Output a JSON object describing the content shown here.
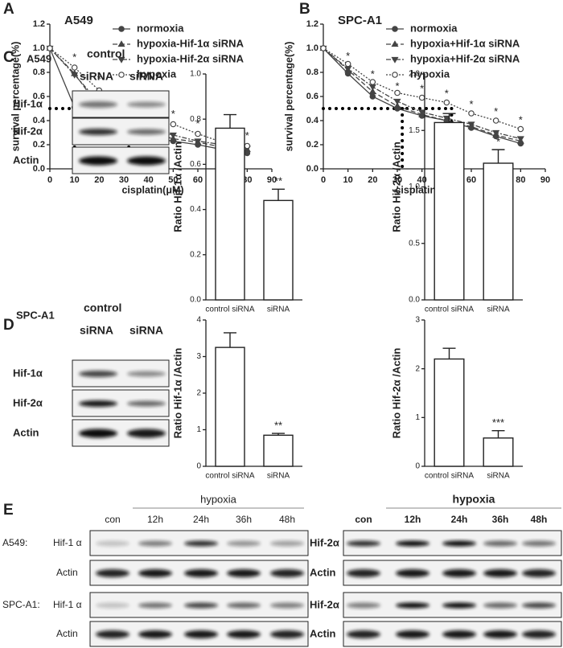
{
  "panel_labels": [
    "A",
    "B",
    "C",
    "D",
    "E"
  ],
  "chart_data": [
    {
      "type": "line",
      "title": "A549",
      "xlabel": "cisplatin(μM)",
      "ylabel": "survival percentage(%)",
      "x": [
        0,
        10,
        20,
        30,
        40,
        50,
        60,
        70,
        80
      ],
      "xlim": [
        0,
        90
      ],
      "xticks": [
        0,
        10,
        20,
        30,
        40,
        50,
        60,
        70,
        80,
        90
      ],
      "ylim": [
        0,
        1.2
      ],
      "yticks": [
        {
          "value": 0,
          "label": "0.0"
        },
        0.2,
        0.4,
        0.6,
        0.8,
        {
          "value": 1,
          "label": "1.0"
        },
        1.2
      ],
      "legend": "upper right",
      "series": [
        {
          "name": "normoxia",
          "color": "#444444",
          "line_style": "solid",
          "marker": "filled-circle",
          "values": [
            1.0,
            0.51,
            0.41,
            0.31,
            0.26,
            0.23,
            0.2,
            0.16,
            0.13
          ]
        },
        {
          "name": "hypoxia-Hif-1α siRNA",
          "color": "#444444",
          "line_style": "dashed",
          "marker": "triangle-up",
          "values": [
            1.0,
            0.79,
            0.51,
            0.37,
            0.3,
            0.25,
            0.22,
            0.18,
            0.16
          ]
        },
        {
          "name": "hypoxia-Hif-2α siRNA",
          "color": "#444444",
          "line_style": "dashdot",
          "marker": "triangle-down",
          "values": [
            1.0,
            0.78,
            0.55,
            0.42,
            0.33,
            0.28,
            0.23,
            0.2,
            0.17
          ]
        },
        {
          "name": "hypoxia",
          "color": "#444444",
          "line_style": "dotted",
          "marker": "open-circle",
          "values": [
            1.0,
            0.84,
            0.65,
            0.5,
            0.44,
            0.37,
            0.29,
            0.22,
            0.19
          ]
        }
      ],
      "reference_lines": {
        "y": 0.5,
        "x": [
          10,
          32
        ]
      },
      "annotations": [
        {
          "text": "*",
          "x": 10,
          "y": 0.92
        },
        {
          "text": "*",
          "x": 20,
          "y": 0.74
        },
        {
          "text": "*",
          "x": 30,
          "y": 0.58
        },
        {
          "text": "*",
          "x": 40,
          "y": 0.52
        },
        {
          "text": "*",
          "x": 50,
          "y": 0.45
        },
        {
          "text": "*",
          "x": 60,
          "y": 0.37
        },
        {
          "text": "*",
          "x": 70,
          "y": 0.3
        },
        {
          "text": "*",
          "x": 80,
          "y": 0.27
        }
      ]
    },
    {
      "type": "line",
      "title": "SPC-A1",
      "xlabel": "cisplatin(μM)",
      "ylabel": "survival percentage(%)",
      "x": [
        0,
        10,
        20,
        30,
        40,
        50,
        60,
        70,
        80
      ],
      "xlim": [
        0,
        90
      ],
      "xticks": [
        0,
        10,
        20,
        30,
        40,
        50,
        60,
        70,
        80,
        90
      ],
      "ylim": [
        0,
        1.2
      ],
      "yticks": [
        {
          "value": 0,
          "label": "0.0"
        },
        0.2,
        0.4,
        0.6,
        0.8,
        {
          "value": 1,
          "label": "1.0"
        },
        1.2
      ],
      "legend": "upper right",
      "series": [
        {
          "name": "normoxia",
          "color": "#444444",
          "line_style": "solid",
          "marker": "filled-circle",
          "values": [
            1.0,
            0.79,
            0.6,
            0.5,
            0.44,
            0.4,
            0.34,
            0.27,
            0.21
          ]
        },
        {
          "name": "hypoxia+Hif-1α siRNA",
          "color": "#444444",
          "line_style": "dashed",
          "marker": "triangle-up",
          "values": [
            1.0,
            0.82,
            0.64,
            0.52,
            0.45,
            0.4,
            0.35,
            0.28,
            0.23
          ]
        },
        {
          "name": "hypoxia+Hif-2α siRNA",
          "color": "#444444",
          "line_style": "dashdot",
          "marker": "triangle-down",
          "values": [
            1.0,
            0.83,
            0.68,
            0.56,
            0.47,
            0.42,
            0.37,
            0.3,
            0.25
          ]
        },
        {
          "name": "hypoxia",
          "color": "#444444",
          "line_style": "dotted",
          "marker": "open-circle",
          "values": [
            1.0,
            0.87,
            0.72,
            0.63,
            0.59,
            0.55,
            0.46,
            0.4,
            0.33
          ]
        }
      ],
      "reference_lines": {
        "y": 0.5,
        "x": [
          32,
          52
        ]
      },
      "annotations": [
        {
          "text": "*",
          "x": 10,
          "y": 0.93
        },
        {
          "text": "*",
          "x": 20,
          "y": 0.78
        },
        {
          "text": "*",
          "x": 30,
          "y": 0.68
        },
        {
          "text": "*",
          "x": 40,
          "y": 0.66
        },
        {
          "text": "*",
          "x": 50,
          "y": 0.62
        },
        {
          "text": "*",
          "x": 60,
          "y": 0.53
        },
        {
          "text": "*",
          "x": 70,
          "y": 0.47
        },
        {
          "text": "*",
          "x": 80,
          "y": 0.4
        }
      ]
    },
    {
      "type": "bar",
      "ylabel": "Ratio Hif-1α /Actin",
      "categories": [
        "control siRNA",
        "siRNA"
      ],
      "values": [
        0.76,
        0.44
      ],
      "errors": [
        0.06,
        0.05
      ],
      "color": "#ffffff",
      "ylim": [
        0,
        1
      ],
      "yticks": [
        {
          "value": 0,
          "label": "0.0"
        },
        0.2,
        0.4,
        0.6,
        0.8,
        {
          "value": 1,
          "label": "1.0"
        }
      ],
      "annotations": [
        {
          "text": "**",
          "index": 1
        }
      ]
    },
    {
      "type": "bar",
      "ylabel": "Ratio Hif-2α /Actin",
      "categories": [
        "control siRNA",
        "siRNA"
      ],
      "values": [
        1.57,
        1.21
      ],
      "errors": [
        0.08,
        0.12
      ],
      "color": "#ffffff",
      "ylim": [
        0,
        2
      ],
      "yticks": [
        {
          "value": 0,
          "label": "0.0"
        },
        0.5,
        {
          "value": 1,
          "label": "1.0"
        },
        1.5,
        {
          "value": 2,
          "label": "2.0"
        }
      ],
      "annotations": [
        {
          "text": "*",
          "index": 1
        }
      ]
    },
    {
      "type": "bar",
      "ylabel": "Ratio Hif-1α /Actin",
      "categories": [
        "control siRNA",
        "siRNA"
      ],
      "values": [
        3.25,
        0.85
      ],
      "errors": [
        0.4,
        0.05
      ],
      "color": "#ffffff",
      "ylim": [
        0,
        4
      ],
      "yticks": [
        0,
        1,
        2,
        3,
        4
      ],
      "annotations": [
        {
          "text": "**",
          "index": 1
        }
      ]
    },
    {
      "type": "bar",
      "ylabel": "Ratio Hif-2α /Actin",
      "categories": [
        "control siRNA",
        "siRNA"
      ],
      "values": [
        2.2,
        0.58
      ],
      "errors": [
        0.22,
        0.15
      ],
      "color": "#ffffff",
      "ylim": [
        0,
        3
      ],
      "yticks": [
        0,
        1,
        2,
        3
      ],
      "annotations": [
        {
          "text": "***",
          "index": 1
        }
      ]
    }
  ],
  "blots": {
    "C": {
      "cell_line": "A549",
      "header": "control",
      "lanes": [
        "siRNA",
        "siRNA"
      ],
      "rows": [
        "Hif-1α",
        "Hif-2α",
        "Actin"
      ]
    },
    "D": {
      "cell_line": "SPC-A1",
      "header": "control",
      "lanes": [
        "siRNA",
        "siRNA"
      ],
      "rows": [
        "Hif-1α",
        "Hif-2α",
        "Actin"
      ]
    },
    "E": {
      "left": {
        "control": "con",
        "group": "hypoxia",
        "lanes": [
          "12h",
          "24h",
          "36h",
          "48h"
        ],
        "cells": [
          "A549:",
          "SPC-A1:"
        ],
        "rows": [
          "Hif-1 α",
          "Actin",
          "Hif-1 α",
          "Actin"
        ]
      },
      "right": {
        "control": "con",
        "group": "hypoxia",
        "lanes": [
          "12h",
          "24h",
          "36h",
          "48h"
        ],
        "rows": [
          "Hif-2α",
          "Actin",
          "Hif-2α",
          "Actin"
        ]
      }
    }
  }
}
